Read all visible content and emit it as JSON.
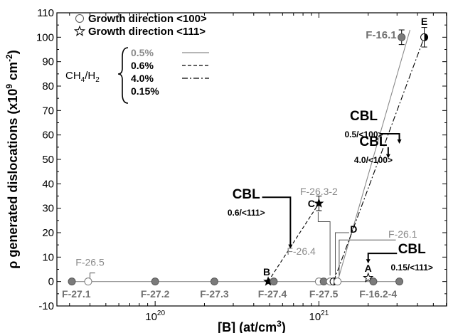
{
  "chart_data": {
    "type": "scatter",
    "xscale": "log",
    "xlim_log10": [
      19.4,
      21.78
    ],
    "ylim": [
      -10,
      110
    ],
    "xlabel_main": "[B] (at/cm",
    "xlabel_sup": "3",
    "xlabel_end": ")",
    "ylabel_main": "ρ generated dislocations (x10",
    "ylabel_sup1": "9",
    "ylabel_mid": " cm",
    "ylabel_sup2": "-2",
    "ylabel_end": ")",
    "yticks": [
      "-10",
      "0",
      "10",
      "20",
      "30",
      "40",
      "50",
      "60",
      "70",
      "80",
      "90",
      "100",
      "110"
    ],
    "xticks": [
      {
        "x": 1e+20,
        "base": "10",
        "exp": "20"
      },
      {
        "x": 1e+21,
        "base": "10",
        "exp": "21"
      }
    ],
    "grid": false,
    "legend": {
      "position": "top-left",
      "entries": [
        {
          "symbol": "circle",
          "label": "Growth direction <100>"
        },
        {
          "symbol": "star",
          "label": "Growth direction <111>"
        }
      ],
      "gas_label_main": "CH",
      "gas_label_sub1": "4",
      "gas_label_mid": "/H",
      "gas_label_sub2": "2",
      "concentrations": [
        {
          "label": "0.5%",
          "line": "solid",
          "color": "#8a8a8a"
        },
        {
          "label": "0.6%",
          "line": "dashed",
          "color": "#000000"
        },
        {
          "label": "4.0%",
          "line": "dashdot",
          "color": "#000000"
        },
        {
          "label": "0.15%",
          "line": "none",
          "color": "#000000"
        }
      ]
    },
    "points": [
      {
        "label": "F-27.1",
        "x": 3.1e+19,
        "y": 0,
        "style": "gray-filled"
      },
      {
        "label": "F-26.5",
        "x": 3.9e+19,
        "y": 0,
        "style": "open"
      },
      {
        "label": "F-27.2",
        "x": 1e+20,
        "y": 0,
        "style": "gray-filled"
      },
      {
        "label": "F-27.3",
        "x": 2.3e+20,
        "y": 0,
        "style": "gray-filled"
      },
      {
        "label": "B",
        "x": 4.9e+20,
        "y": 0,
        "style": "star-black"
      },
      {
        "label": "F-27.4",
        "x": 5.3e+20,
        "y": 0,
        "style": "gray-filled"
      },
      {
        "label": "F-26.4",
        "x": 1e+21,
        "y": 0,
        "style": "open"
      },
      {
        "label": "F-27.5",
        "x": 1.07e+21,
        "y": 0,
        "style": "gray-filled"
      },
      {
        "label": "F-26.3-2",
        "x": 1.17e+21,
        "y": 0,
        "style": "open"
      },
      {
        "label": "D",
        "x": 1.23e+21,
        "y": 0,
        "style": "half-filled"
      },
      {
        "label": "F-26.1",
        "x": 1.3e+21,
        "y": 0,
        "style": "open"
      },
      {
        "label": "A",
        "x": 2e+21,
        "y": 1.5,
        "style": "star-open"
      },
      {
        "label": "F-16.2-4",
        "x": 2.15e+21,
        "y": 0,
        "style": "gray-filled"
      },
      {
        "label": "F-16.2-4b",
        "x": 3.1e+21,
        "y": 0,
        "style": "gray-filled"
      },
      {
        "label": "C",
        "x": 1e+21,
        "y": 32,
        "err": 3,
        "style": "star-black"
      },
      {
        "label": "F-16.1",
        "x": 3.2e+21,
        "y": 100,
        "err": 3,
        "style": "gray-filled"
      },
      {
        "label": "E",
        "x": 4.4e+21,
        "y": 100,
        "err": 4,
        "style": "half-filled"
      }
    ],
    "series_lines": [
      {
        "style": "solid",
        "color": "#8a8a8a",
        "points": [
          [
            3.1e+19,
            0
          ],
          [
            3.1e+21,
            0
          ]
        ]
      },
      {
        "style": "solid",
        "color": "#8a8a8a",
        "points": [
          [
            1.3e+21,
            0
          ],
          [
            3.6e+21,
            103
          ]
        ]
      },
      {
        "style": "dashed",
        "color": "#000000",
        "points": [
          [
            4.9e+20,
            0
          ],
          [
            1e+21,
            32
          ]
        ]
      },
      {
        "style": "dashdot",
        "color": "#000000",
        "points": [
          [
            1.23e+21,
            0
          ],
          [
            4.4e+21,
            100
          ]
        ]
      }
    ],
    "point_text_labels": [
      {
        "text": "F-26.5",
        "x": 4e+19,
        "y": 6.5,
        "color": "#8a8a8a",
        "weight": "normal",
        "size": 14,
        "anchor": "middle"
      },
      {
        "text": "F-27.1",
        "x": 3.3e+19,
        "y": -6.5,
        "color": "#707070",
        "weight": "bold",
        "size": 14,
        "anchor": "middle"
      },
      {
        "text": "F-27.2",
        "x": 1e+20,
        "y": -6.5,
        "color": "#707070",
        "weight": "bold",
        "size": 14,
        "anchor": "middle"
      },
      {
        "text": "F-27.3",
        "x": 2.3e+20,
        "y": -6.5,
        "color": "#707070",
        "weight": "bold",
        "size": 14,
        "anchor": "middle"
      },
      {
        "text": "F-27.4",
        "x": 5.2e+20,
        "y": -6.5,
        "color": "#707070",
        "weight": "bold",
        "size": 14,
        "anchor": "middle"
      },
      {
        "text": "F-27.5",
        "x": 1.07e+21,
        "y": -6.5,
        "color": "#707070",
        "weight": "bold",
        "size": 14,
        "anchor": "middle"
      },
      {
        "text": "F-16.2-4",
        "x": 2.3e+21,
        "y": -6.5,
        "color": "#707070",
        "weight": "bold",
        "size": 14,
        "anchor": "middle"
      },
      {
        "text": "B",
        "x": 4.8e+20,
        "y": 2.5,
        "color": "#000000",
        "weight": "bold",
        "size": 14,
        "anchor": "middle"
      },
      {
        "text": "C",
        "x": 9e+20,
        "y": 30.5,
        "color": "#000000",
        "weight": "bold",
        "size": 14,
        "anchor": "middle"
      },
      {
        "text": "A",
        "x": 2e+21,
        "y": 4.0,
        "color": "#000000",
        "weight": "bold",
        "size": 14,
        "anchor": "middle"
      },
      {
        "text": "D",
        "x": 1.63e+21,
        "y": 20,
        "color": "#000000",
        "weight": "bold",
        "size": 14,
        "anchor": "middle"
      },
      {
        "text": "E",
        "x": 4.4e+21,
        "y": 105,
        "color": "#000000",
        "weight": "bold",
        "size": 14,
        "anchor": "middle"
      },
      {
        "text": "F-16.1",
        "x": 2.4e+21,
        "y": 99.5,
        "color": "#707070",
        "weight": "bold",
        "size": 15,
        "anchor": "middle"
      },
      {
        "text": "F-26.4",
        "x": 7.8e+20,
        "y": 11,
        "color": "#8a8a8a",
        "weight": "normal",
        "size": 14,
        "anchor": "middle"
      },
      {
        "text": "F-26.3-2",
        "x": 1e+21,
        "y": 35.5,
        "color": "#8a8a8a",
        "weight": "normal",
        "size": 14,
        "anchor": "middle"
      },
      {
        "text": "F-26.1",
        "x": 3.25e+21,
        "y": 18,
        "color": "#8a8a8a",
        "weight": "normal",
        "size": 14,
        "anchor": "middle"
      }
    ],
    "annotations": [
      {
        "main": "CBL",
        "sub": "0.5/<100>",
        "text_x": 1.88e+21,
        "text_y": 66,
        "bracket": [
          [
            2.35e+21,
            60.5
          ],
          [
            3.1e+21,
            60.5
          ],
          [
            3.1e+21,
            57
          ]
        ]
      },
      {
        "main": "CBL",
        "sub": "4.0/<100>",
        "text_x": 2.15e+21,
        "text_y": 55.5,
        "bracket": [
          [
            2.65e+21,
            55
          ],
          [
            2.65e+21,
            51
          ]
        ]
      },
      {
        "main": "CBL",
        "sub": "0.6/<111>",
        "text_x": 3.6e+20,
        "text_y": 34,
        "bracket": [
          [
            4.5e+20,
            34.5
          ],
          [
            6.7e+20,
            34.5
          ],
          [
            6.7e+20,
            14
          ]
        ]
      },
      {
        "main": "CBL",
        "sub": "0.15/<111>",
        "text_x": 3.7e+21,
        "text_y": 11.5,
        "bracket": [
          [
            3e+21,
            11.5
          ],
          [
            2e+21,
            11.5
          ],
          [
            2e+21,
            8
          ]
        ]
      }
    ],
    "callouts": [
      {
        "points": [
          [
            9.9e+20,
            28.5
          ],
          [
            9.9e+20,
            24.5
          ],
          [
            1.17e+21,
            24.5
          ],
          [
            1.17e+21,
            2.5
          ]
        ]
      },
      {
        "points": [
          [
            1.53e+21,
            20
          ],
          [
            1.26e+21,
            20
          ],
          [
            1.26e+21,
            2.5
          ]
        ]
      },
      {
        "points": [
          [
            2.95e+21,
            17
          ],
          [
            1.33e+21,
            17
          ],
          [
            1.33e+21,
            2.5
          ]
        ]
      },
      {
        "points": [
          [
            4.3e+19,
            3.5
          ],
          [
            4e+19,
            3.5
          ],
          [
            4e+19,
            1.5
          ]
        ]
      }
    ]
  }
}
